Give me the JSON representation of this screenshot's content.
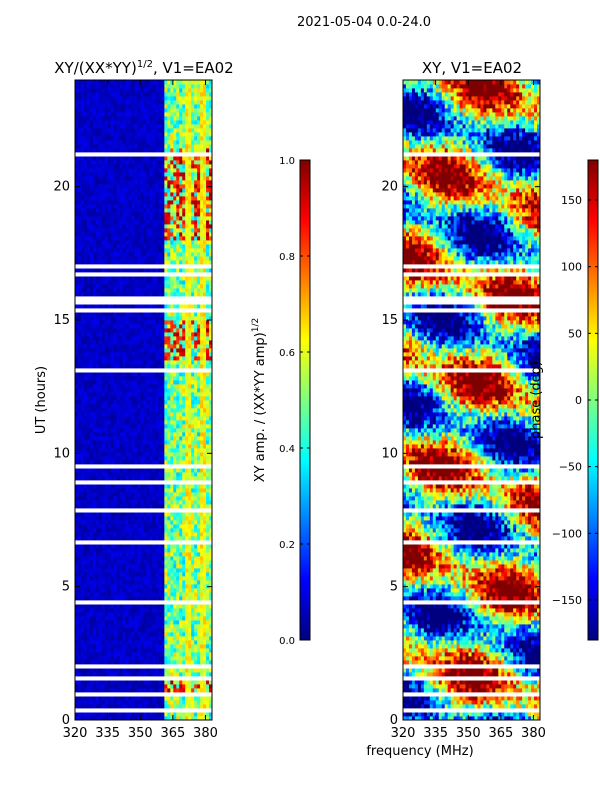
{
  "figure": {
    "suptitle": "2021-05-04 0.0-24.0",
    "shared_xlabel": "frequency (MHz)"
  },
  "colors": {
    "jet": [
      "#00007f",
      "#0000ff",
      "#007fff",
      "#00ffff",
      "#7fff7f",
      "#ffff00",
      "#ff7f00",
      "#ff0000",
      "#7f0000"
    ],
    "gap": "#ffffff",
    "axis": "#000000"
  },
  "chart_data": [
    {
      "type": "heatmap",
      "title": "XY/(XX*YY)",
      "title_exponent": "1/2",
      "title_suffix": ", V1=EA02",
      "xlabel": "",
      "ylabel": "UT (hours)",
      "x_ticks": [
        "320",
        "335",
        "350",
        "365",
        "380"
      ],
      "x_tick_values": [
        320,
        335,
        350,
        365,
        380
      ],
      "xlim": [
        320,
        383
      ],
      "y_ticks": [
        "0",
        "5",
        "10",
        "15",
        "20"
      ],
      "y_tick_values": [
        0,
        5,
        10,
        15,
        20
      ],
      "ylim": [
        0,
        24
      ],
      "value_range": [
        0.0,
        1.0
      ],
      "colorbar": {
        "label": "XY amp. / (XX*YY amp)",
        "label_exponent": "1/2",
        "ticks": [
          "0.0",
          "0.2",
          "0.4",
          "0.6",
          "0.8",
          "1.0"
        ],
        "tick_values": [
          0.0,
          0.2,
          0.4,
          0.6,
          0.8,
          1.0
        ],
        "range": [
          0.0,
          1.0
        ]
      },
      "notes": "Low amplitude (about 0.0-0.1) below 360 MHz; band 360-382 MHz mostly 0.3-0.7 with strong (about 0.9) patches near 1, 14-15 and 18-21 UT. Horizontal white rows mark flagged time gaps."
    },
    {
      "type": "heatmap",
      "title": "XY, V1=EA02",
      "xlabel": "frequency (MHz)",
      "ylabel": "",
      "x_ticks": [
        "320",
        "335",
        "350",
        "365",
        "380"
      ],
      "x_tick_values": [
        320,
        335,
        350,
        365,
        380
      ],
      "xlim": [
        320,
        383
      ],
      "y_ticks": [
        "0",
        "5",
        "10",
        "15",
        "20"
      ],
      "y_tick_values": [
        0,
        5,
        10,
        15,
        20
      ],
      "ylim": [
        0,
        24
      ],
      "value_range": [
        -180,
        180
      ],
      "colorbar": {
        "label": "phase (deg)",
        "ticks": [
          "−150",
          "−100",
          "−50",
          "0",
          "50",
          "100",
          "150"
        ],
        "tick_values": [
          -150,
          -100,
          -50,
          0,
          50,
          100,
          150
        ],
        "range": [
          -180,
          180
        ]
      },
      "notes": "Phase spans the full -180 to 180 deg range; banded horizontal structure varying smoothly with time, with white flagged rows at the same times as the amplitude panel."
    }
  ]
}
